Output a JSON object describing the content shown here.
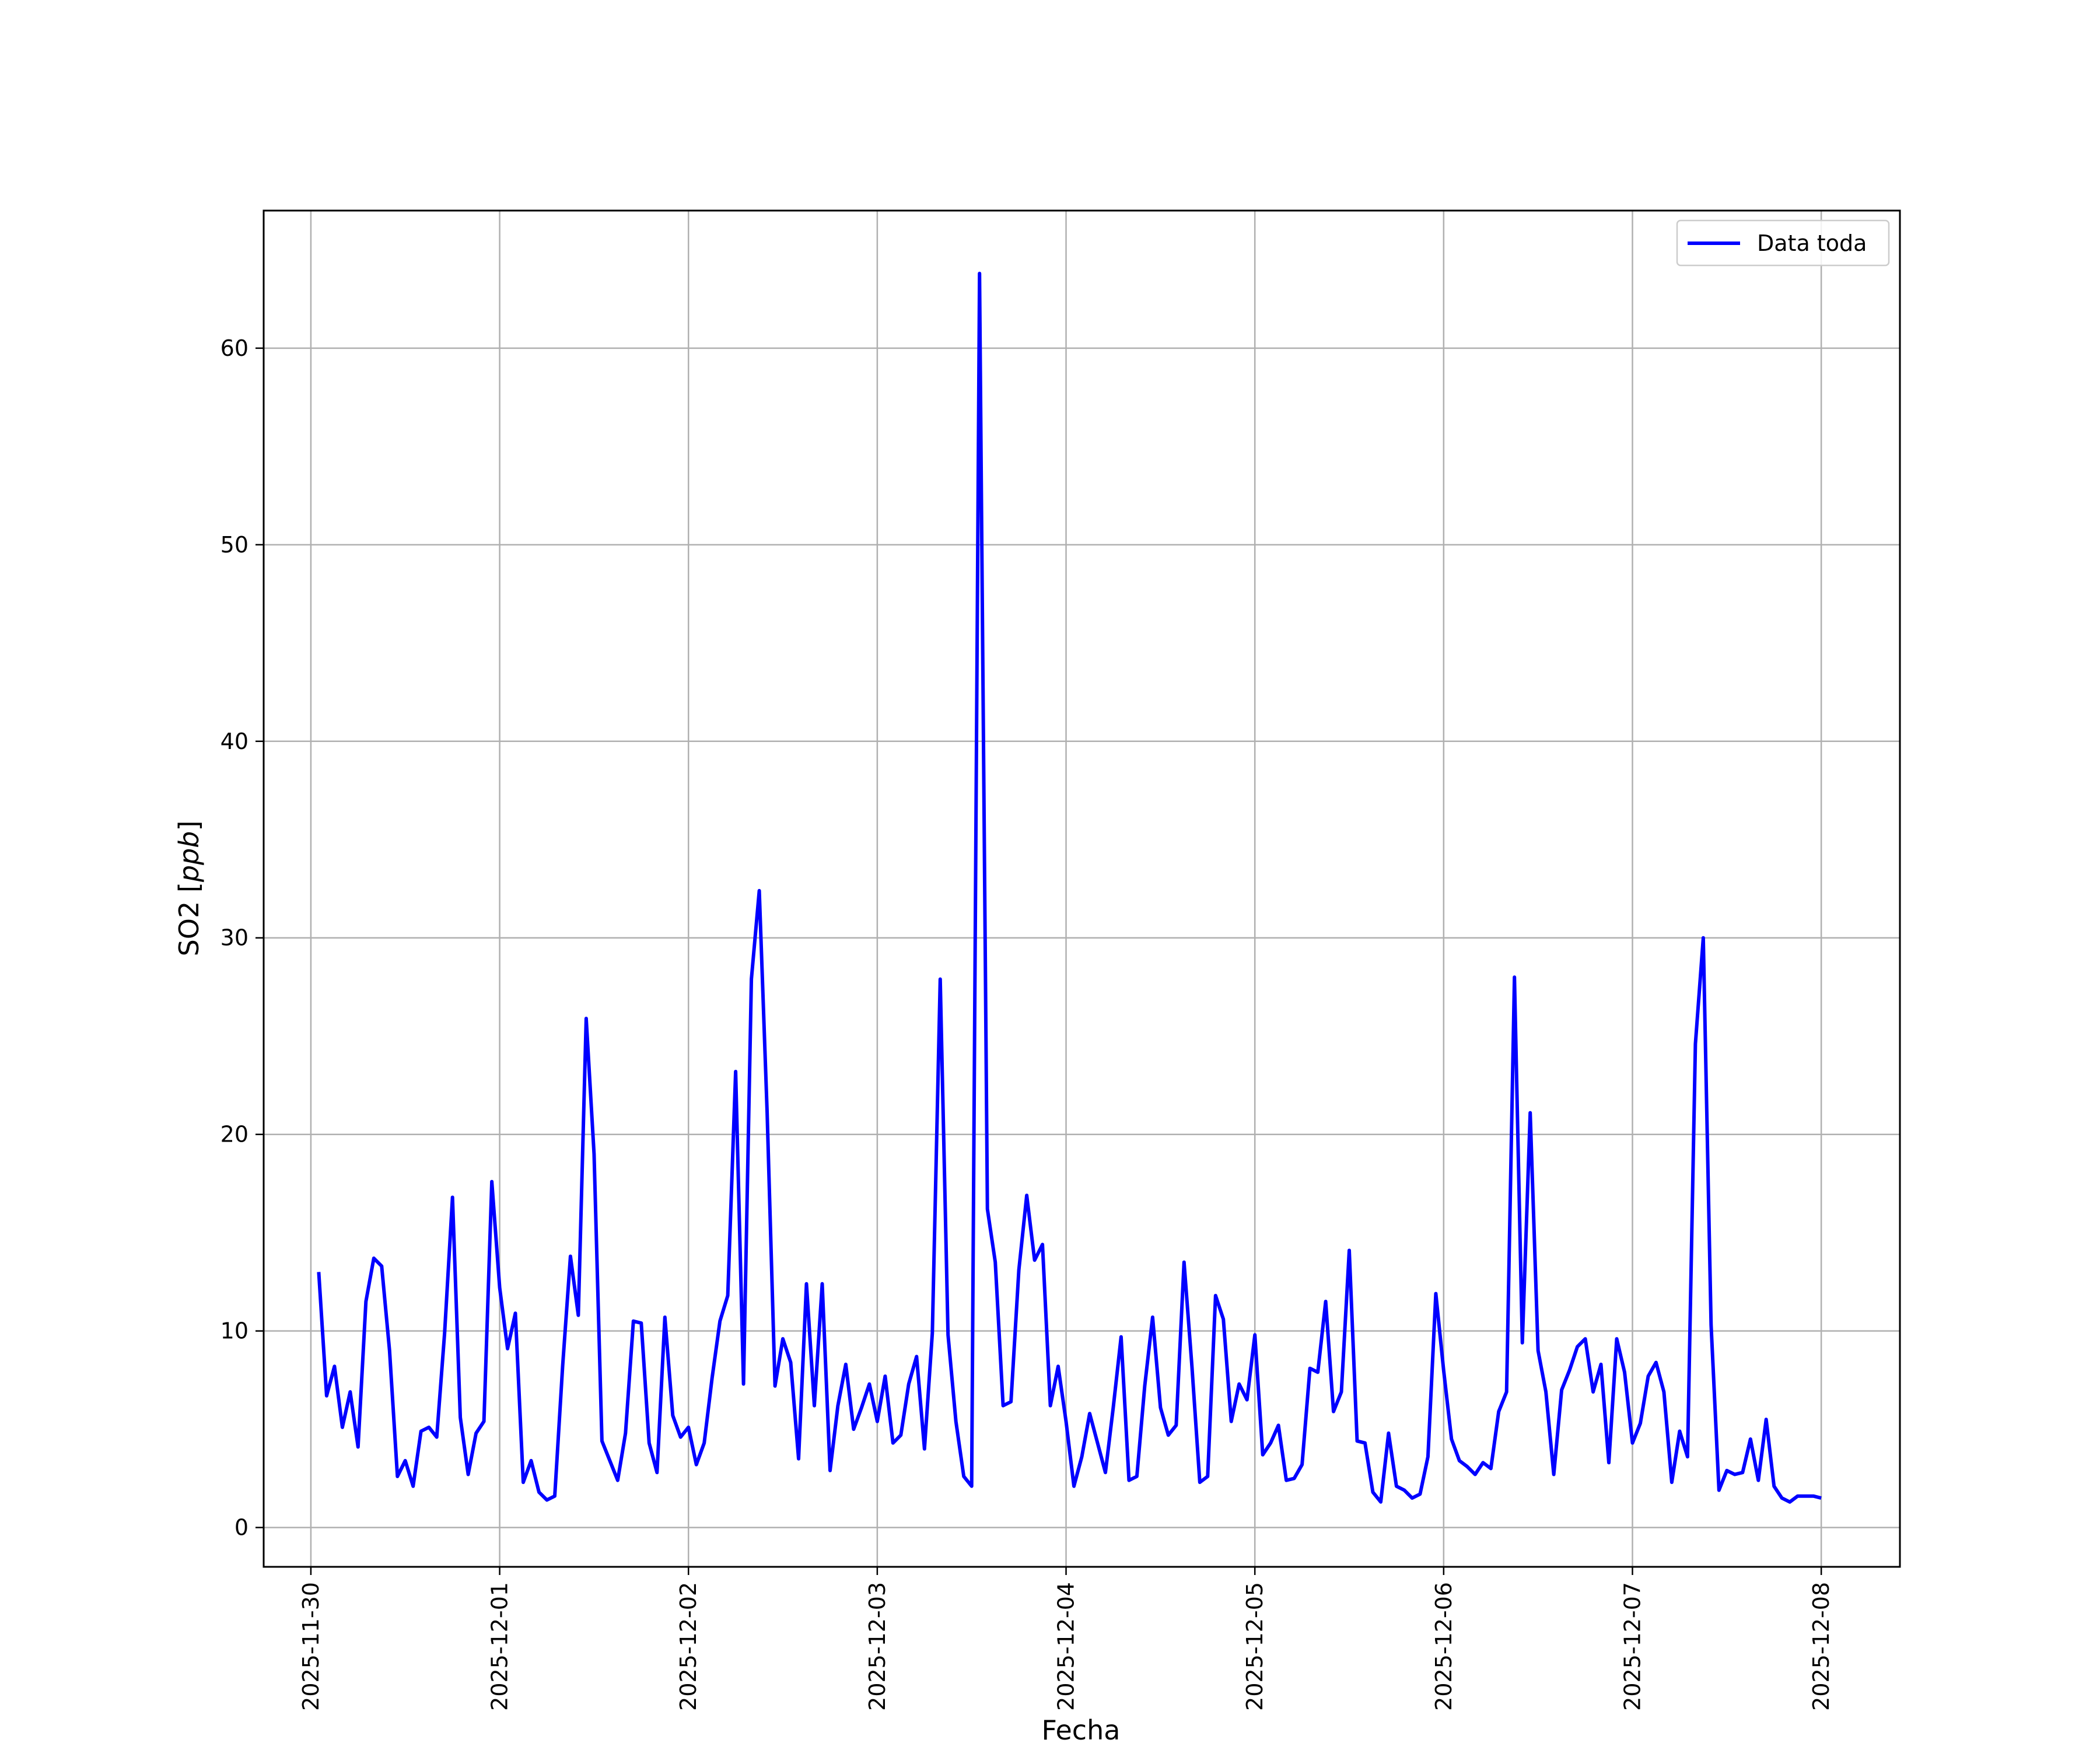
{
  "chart_data": {
    "type": "line",
    "title": "",
    "xlabel": "Fecha",
    "ylabel": "SO2 [ppb]",
    "ylabel_main": "SO2 [",
    "ylabel_unit": "ppb",
    "ylabel_close": "]",
    "xlim": [
      "2025-11-29T18:00",
      "2025-12-08T10:00"
    ],
    "ylim": [
      -2,
      67
    ],
    "grid": true,
    "legend_position": "top-right",
    "x_ticks": [
      "2025-11-30",
      "2025-12-01",
      "2025-12-02",
      "2025-12-03",
      "2025-12-04",
      "2025-12-05",
      "2025-12-06",
      "2025-12-07",
      "2025-12-08"
    ],
    "y_ticks": [
      0,
      10,
      20,
      30,
      40,
      50,
      60
    ],
    "series": [
      {
        "name": "Data toda",
        "color": "#0000ff",
        "start": "2025-11-30T01:00",
        "step_hours": 1,
        "values": [
          13.0,
          6.7,
          8.2,
          5.1,
          6.9,
          4.1,
          11.5,
          13.7,
          13.3,
          9.0,
          2.6,
          3.4,
          2.1,
          4.9,
          5.1,
          4.6,
          9.9,
          16.8,
          5.6,
          2.7,
          4.8,
          5.4,
          17.6,
          12.2,
          9.1,
          10.9,
          2.3,
          3.4,
          1.8,
          1.4,
          1.6,
          8.2,
          13.8,
          10.8,
          25.9,
          19.0,
          4.4,
          3.4,
          2.4,
          4.8,
          10.5,
          10.4,
          4.3,
          2.8,
          10.7,
          5.7,
          4.6,
          5.1,
          3.2,
          4.3,
          7.6,
          10.5,
          11.8,
          23.2,
          7.3,
          27.9,
          32.4,
          21.1,
          7.2,
          9.6,
          8.4,
          3.5,
          12.4,
          6.2,
          12.4,
          2.9,
          6.2,
          8.3,
          5.0,
          6.1,
          7.3,
          5.4,
          7.7,
          4.3,
          4.7,
          7.3,
          8.7,
          4.0,
          9.9,
          27.9,
          9.8,
          5.4,
          2.6,
          2.1,
          63.8,
          16.2,
          13.5,
          6.2,
          6.4,
          13.1,
          16.9,
          13.6,
          14.4,
          6.2,
          8.2,
          5.4,
          2.1,
          3.6,
          5.8,
          4.3,
          2.8,
          6.1,
          9.7,
          2.4,
          2.6,
          7.2,
          10.7,
          6.1,
          4.7,
          5.2,
          13.5,
          8.2,
          2.3,
          2.6,
          11.8,
          10.6,
          5.4,
          7.3,
          6.5,
          9.8,
          3.7,
          4.3,
          5.2,
          2.4,
          2.5,
          3.2,
          8.1,
          7.9,
          11.5,
          5.9,
          6.9,
          14.1,
          4.4,
          4.3,
          1.8,
          1.3,
          4.8,
          2.1,
          1.9,
          1.5,
          1.7,
          3.6,
          11.9,
          8.0,
          4.5,
          3.4,
          3.1,
          2.7,
          3.3,
          3.0,
          5.9,
          6.9,
          28.0,
          9.4,
          21.1,
          9.0,
          6.9,
          2.7,
          7.0,
          8.0,
          9.2,
          9.6,
          6.9,
          8.3,
          3.3,
          9.6,
          7.9,
          4.3,
          5.3,
          7.7,
          8.4,
          6.9,
          2.3,
          4.9,
          3.6,
          24.6,
          30.0,
          10.3,
          1.9,
          2.9,
          2.7,
          2.8,
          4.5,
          2.4,
          5.5,
          2.1,
          1.5,
          1.3,
          1.6,
          1.6,
          1.6,
          1.5
        ]
      }
    ]
  }
}
